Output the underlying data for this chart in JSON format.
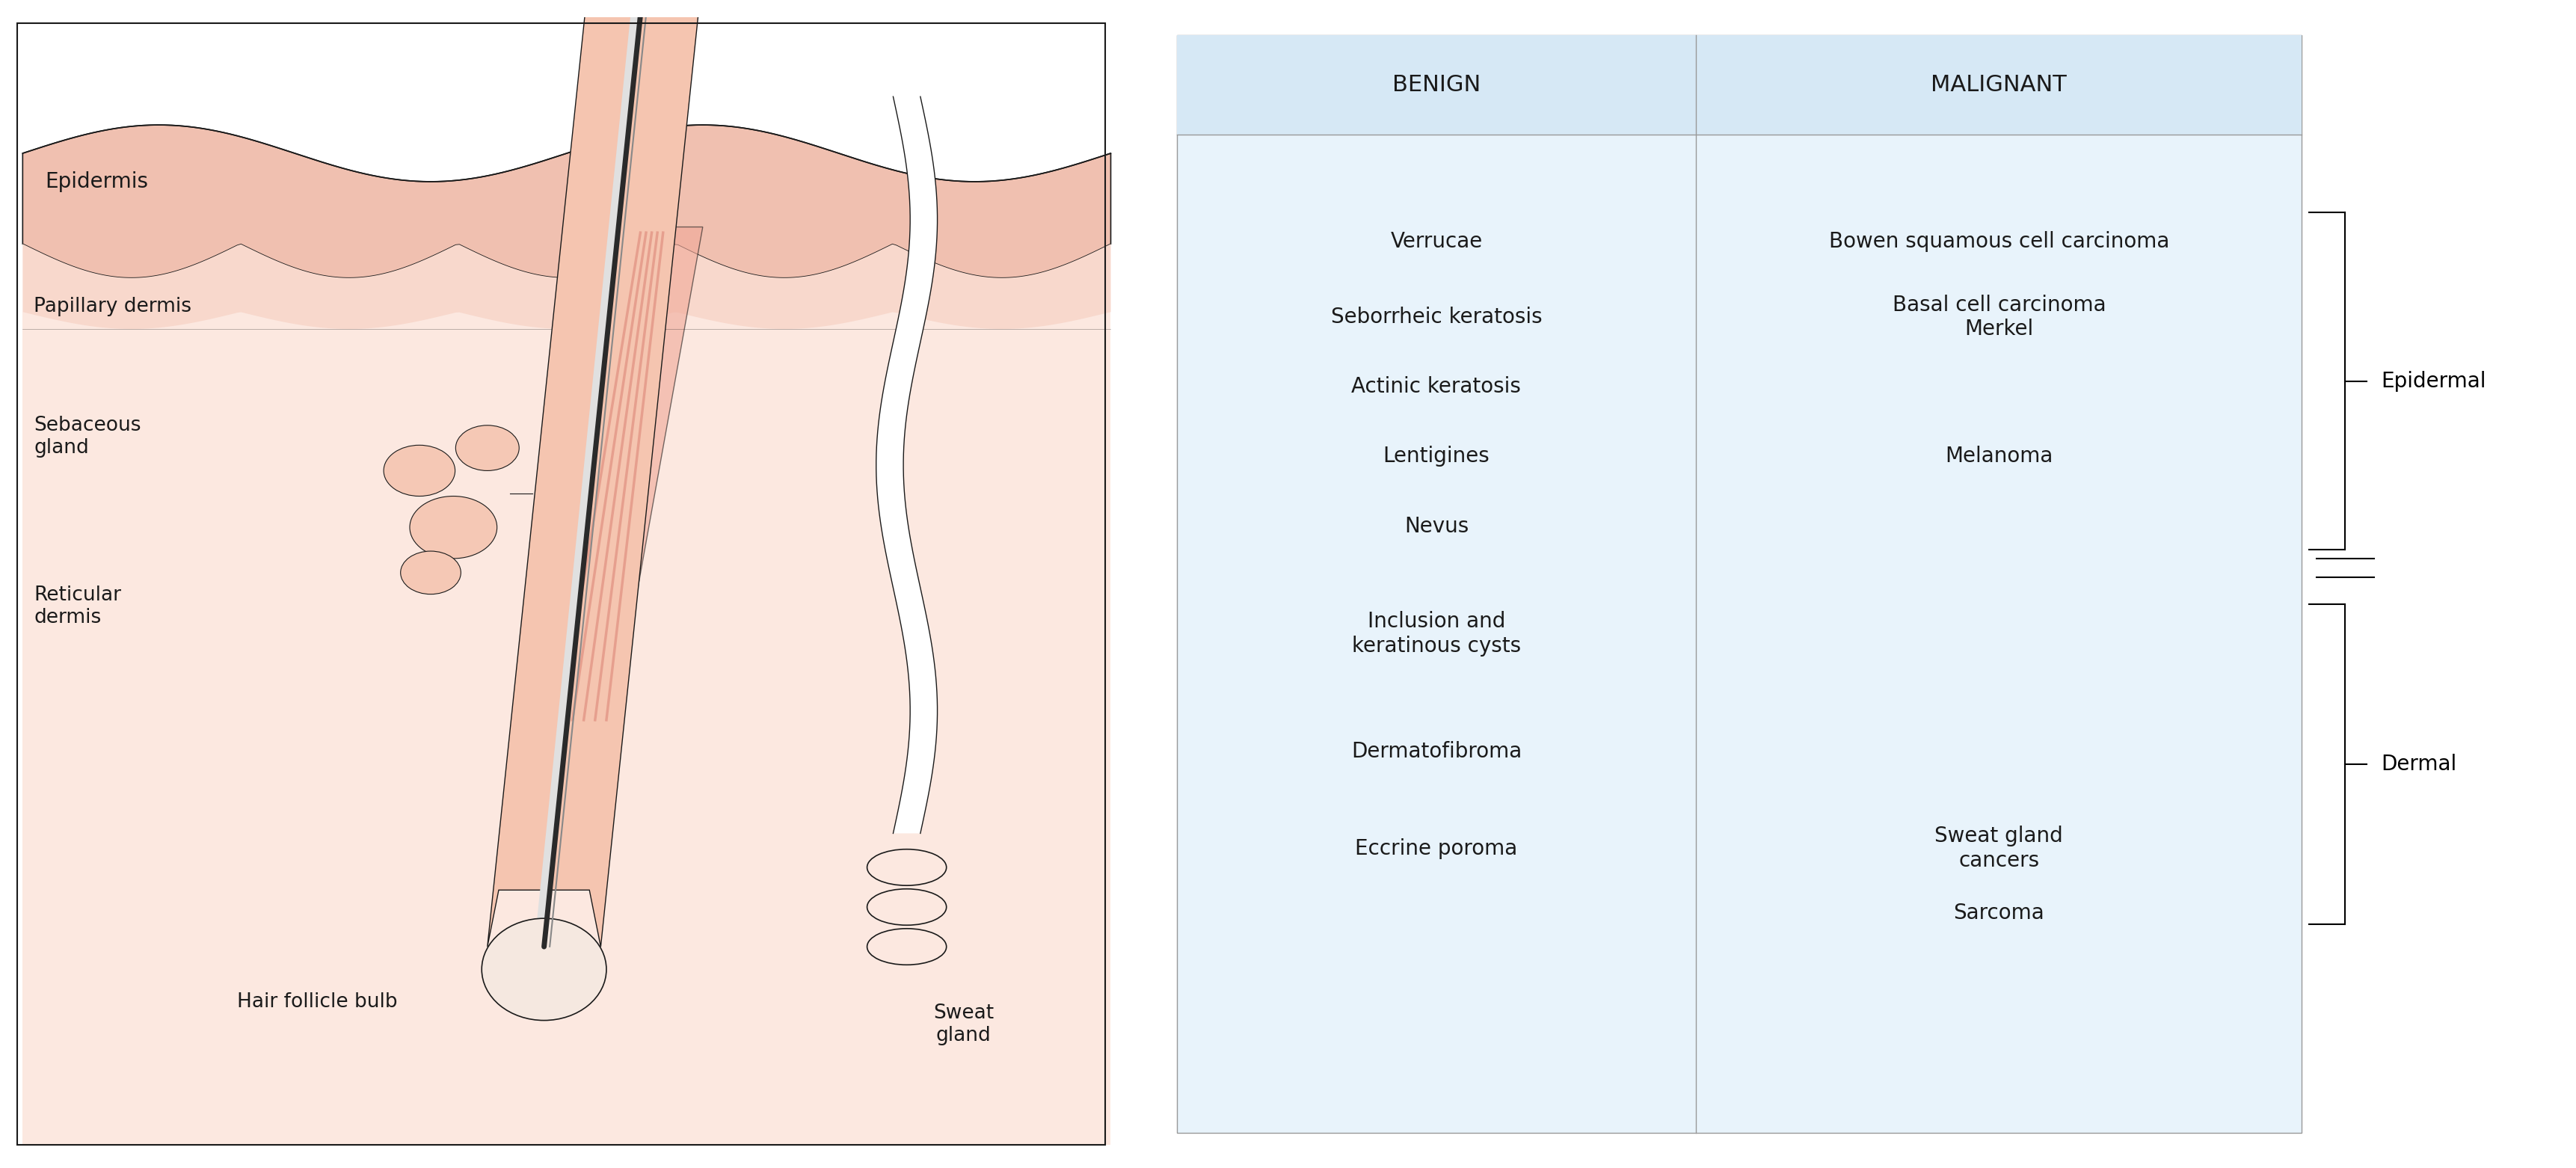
{
  "table": {
    "header_bg": "#d6e8f5",
    "body_bg": "#e8f3fb",
    "header_text_color": "#1a1a1a",
    "body_text_color": "#1a1a1a",
    "col1_header": "BENIGN",
    "col2_header": "MALIGNANT",
    "col1_items": [
      "Verrucae",
      "Seborrheic keratosis",
      "Actinic keratosis",
      "Lentigines",
      "Nevus",
      "Inclusion and\nkeratinous cysts",
      "Dermatofibroma",
      "Eccrine poroma"
    ],
    "col2_items": [
      "Bowen squamous cell carcinoma",
      "Basal cell carcinoma\nMerkel",
      "",
      "Melanoma",
      "",
      "",
      "",
      "Sweat gland\ncancers"
    ],
    "extra_col2": "Sarcoma",
    "bracket_label_epidermal": "Epidermal",
    "bracket_label_dermal": "Dermal"
  },
  "skin_labels": {
    "epidermis": "Epidermis",
    "papillary_dermis": "Papillary dermis",
    "sebaceous_gland": "Sebaceous\ngland",
    "reticular_dermis": "Reticular\ndermis",
    "hair_follicle_bulb": "Hair follicle bulb",
    "sweat_gland": "Sweat\ngland"
  },
  "colors": {
    "skin_outer": "#f0c0b0",
    "skin_inner": "#f8d8cc",
    "skin_deep": "#fce8e0",
    "outline": "#1a1a1a",
    "hair_dark": "#1a1a1a",
    "hair_light": "#d0d0d0",
    "muscle_outer": "#e08080",
    "muscle_inner": "#f0a090",
    "white_sheath": "#ffffff",
    "background": "#ffffff",
    "table_line": "#999999"
  },
  "font_size_table_header": 22,
  "font_size_table_body": 20,
  "font_size_label": 19,
  "font_size_epidermis_label": 20
}
